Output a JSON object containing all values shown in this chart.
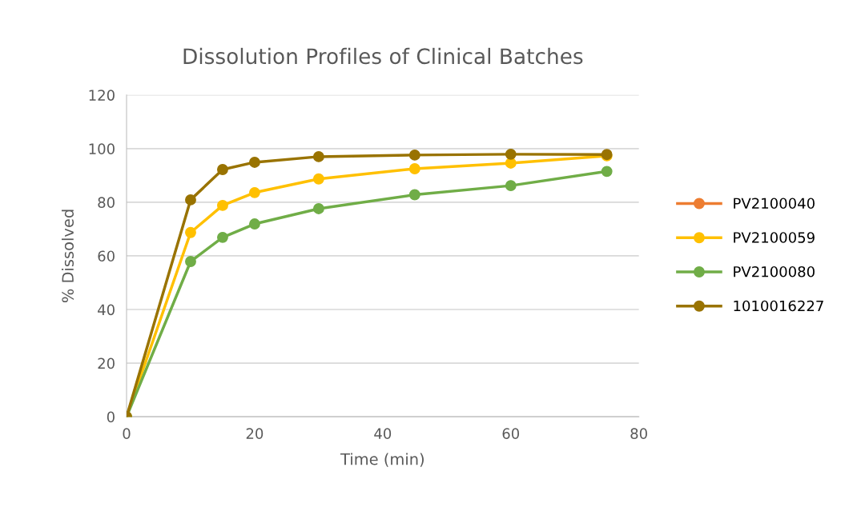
{
  "chart_data": {
    "type": "line",
    "title": "Dissolution Profiles of Clinical Batches",
    "xlabel": "Time (min)",
    "ylabel": "% Dissolved",
    "x": [
      0,
      10,
      15,
      20,
      30,
      45,
      60,
      75
    ],
    "series": [
      {
        "name": "PV2100040",
        "color": "#ed7d31",
        "values": [
          null,
          null,
          null,
          null,
          null,
          null,
          null,
          null
        ]
      },
      {
        "name": "PV2100059",
        "color": "#ffc000",
        "values": [
          0,
          68.7,
          78.8,
          83.6,
          88.7,
          92.5,
          94.6,
          97.3
        ]
      },
      {
        "name": "PV2100080",
        "color": "#70ad47",
        "values": [
          0,
          57.9,
          66.9,
          71.9,
          77.6,
          82.8,
          86.2,
          91.5
        ]
      },
      {
        "name": "1010016227",
        "color": "#997300",
        "values": [
          0,
          80.9,
          92.2,
          94.9,
          97.0,
          97.6,
          97.9,
          97.8
        ]
      }
    ],
    "xlim": [
      0,
      80
    ],
    "xticks": [
      0,
      20,
      40,
      60,
      80
    ],
    "ylim": [
      0,
      120
    ],
    "yticks": [
      0,
      20,
      40,
      60,
      80,
      100,
      120
    ],
    "grid": "y",
    "legend": "right",
    "marker": "circle"
  }
}
